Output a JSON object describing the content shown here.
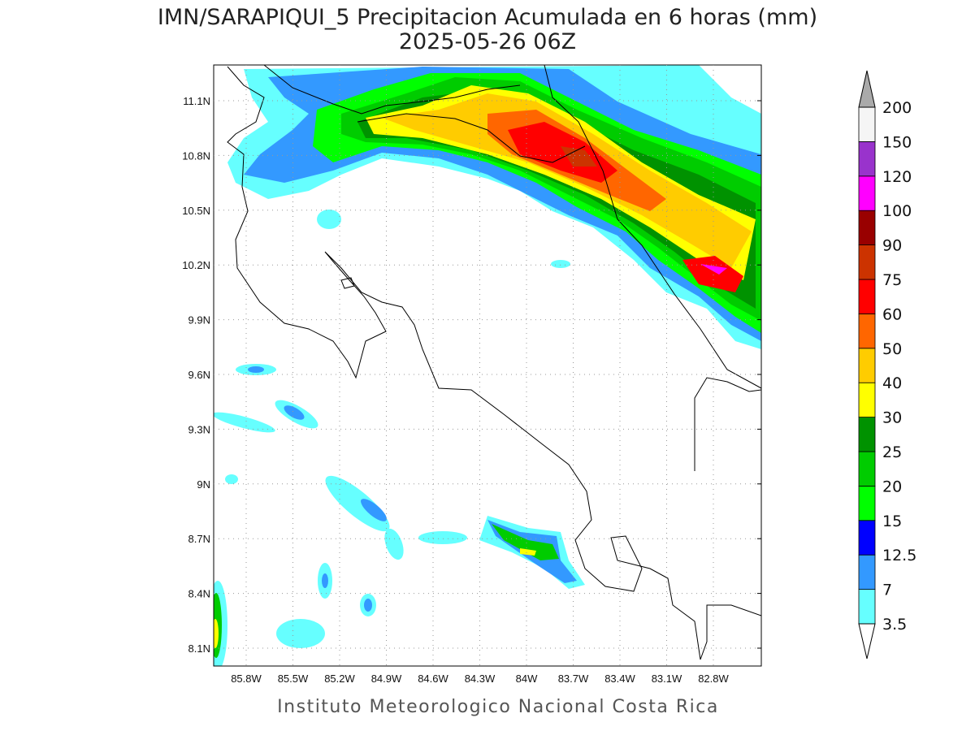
{
  "title": "IMN/SARAPIQUI_5 Precipitacion Acumulada en 6 horas (mm)",
  "subtitle": "2025-05-26 06Z",
  "lat_labels": [
    "11.1N",
    "10.8N",
    "10.5N",
    "10.2N",
    "9.9N",
    "9.6N",
    "9.3N",
    "9N",
    "8.7N",
    "8.4N",
    "8.1N"
  ],
  "lon_labels": [
    "85.8W",
    "85.5W",
    "85.2W",
    "84.9W",
    "84.6W",
    "84.3W",
    "84W",
    "83.7W",
    "83.4W",
    "83.1W",
    "82.8W"
  ],
  "colorbar": {
    "levels": [
      3.5,
      7,
      12.5,
      15,
      20,
      25,
      30,
      40,
      50,
      60,
      75,
      90,
      100,
      120,
      150,
      200
    ],
    "colors": [
      "#66ffff",
      "#3399ff",
      "#0000ff",
      "#00ff00",
      "#00cc00",
      "#009200",
      "#ffff00",
      "#ffcc00",
      "#ff6600",
      "#ff0000",
      "#cc3300",
      "#990000",
      "#ff00ff",
      "#9933cc",
      "#f5f5f5"
    ],
    "over_color": "#aaaaaa",
    "under_color": "#ffffff"
  },
  "footer": "Instituto Meteorologico Nacional Costa Rica"
}
